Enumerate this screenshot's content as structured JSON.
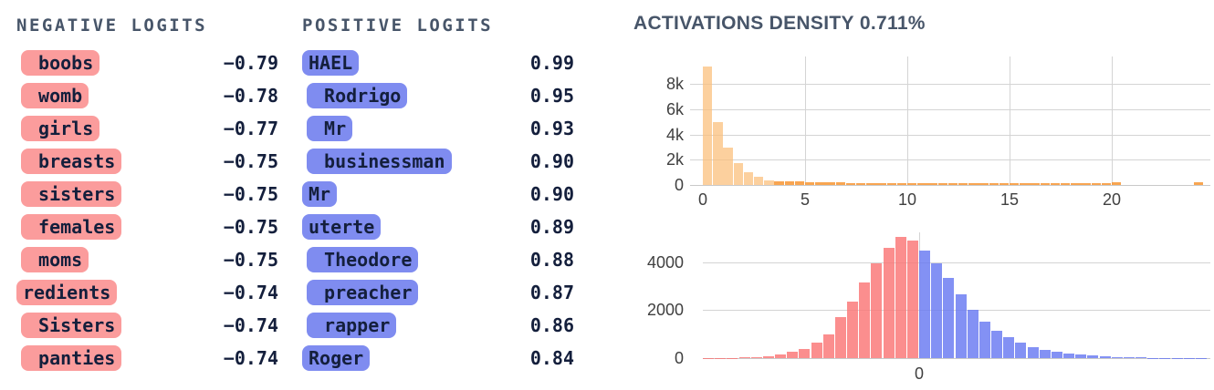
{
  "negative_logits": {
    "title": "NEGATIVE LOGITS",
    "items": [
      {
        "token": " boobs",
        "value": "−0.79"
      },
      {
        "token": " womb",
        "value": "−0.78"
      },
      {
        "token": " girls",
        "value": "−0.77"
      },
      {
        "token": " breasts",
        "value": "−0.75"
      },
      {
        "token": " sisters",
        "value": "−0.75"
      },
      {
        "token": " females",
        "value": "−0.75"
      },
      {
        "token": " moms",
        "value": "−0.75"
      },
      {
        "token": "redients",
        "value": "−0.74"
      },
      {
        "token": " Sisters",
        "value": "−0.74"
      },
      {
        "token": " panties",
        "value": "−0.74"
      }
    ]
  },
  "positive_logits": {
    "title": "POSITIVE LOGITS",
    "items": [
      {
        "token": "HAEL",
        "value": "0.99"
      },
      {
        "token": " Rodrigo",
        "value": "0.95"
      },
      {
        "token": " Mr",
        "value": "0.93"
      },
      {
        "token": " businessman",
        "value": "0.90"
      },
      {
        "token": "Mr",
        "value": "0.90"
      },
      {
        "token": "uterte",
        "value": "0.89"
      },
      {
        "token": " Theodore",
        "value": "0.88"
      },
      {
        "token": " preacher",
        "value": "0.87"
      },
      {
        "token": " rapper",
        "value": "0.86"
      },
      {
        "token": "Roger",
        "value": "0.84"
      }
    ]
  },
  "activations": {
    "title": "ACTIVATIONS DENSITY",
    "density": "0.711%"
  },
  "colors": {
    "negative_pill_bg": "#FB9C9C",
    "positive_pill_bg": "#7F8CF0",
    "token_text": "#141F3C",
    "header_text": "#475569",
    "gridline": "#D4D4D4",
    "axis_line": "#C9C9C9",
    "tick_text": "#404040",
    "activation_bar": "rgba(251,192,126,0.75)",
    "activation_bar_small": "rgba(247,149,51,0.85)",
    "logit_hist_negative": "rgba(250,114,114,0.8)",
    "logit_hist_positive": "rgba(100,118,241,0.8)"
  },
  "chart_data": [
    {
      "id": "activations-histogram",
      "type": "bar",
      "title": "ACTIVATIONS DENSITY 0.711%",
      "xlabel": "",
      "ylabel": "",
      "bin_start": 0,
      "bin_width": 0.5,
      "values": [
        9400,
        5000,
        2950,
        1750,
        1020,
        620,
        370,
        290,
        270,
        260,
        230,
        210,
        195,
        185,
        175,
        170,
        165,
        160,
        160,
        155,
        155,
        150,
        150,
        150,
        148,
        146,
        150,
        145,
        148,
        145,
        145,
        148,
        145,
        148,
        145,
        148,
        145,
        150,
        152,
        158,
        200,
        0,
        0,
        0,
        0,
        0,
        0,
        0,
        190
      ],
      "xticks": [
        0,
        5,
        10,
        15,
        20
      ],
      "yticks": [
        {
          "label": "0",
          "value": 0
        },
        {
          "label": "2k",
          "value": 2000
        },
        {
          "label": "4k",
          "value": 4000
        },
        {
          "label": "6k",
          "value": 6000
        },
        {
          "label": "8k",
          "value": 8000
        }
      ],
      "xlim": [
        -0.65,
        24.85
      ],
      "ylim": [
        0,
        10200
      ],
      "grid": true,
      "small_bar_threshold": 300
    },
    {
      "id": "logits-density-histogram",
      "type": "bar",
      "title": "",
      "xlabel": "",
      "ylabel": "",
      "series": [
        {
          "name": "negative",
          "values": [
            2,
            6,
            14,
            30,
            55,
            90,
            150,
            250,
            400,
            640,
            1000,
            1700,
            2350,
            3150,
            3950,
            4600,
            5050,
            4900
          ]
        },
        {
          "name": "positive",
          "values": [
            4500,
            3950,
            3350,
            2650,
            2000,
            1520,
            1150,
            870,
            640,
            470,
            350,
            260,
            195,
            145,
            108,
            80,
            58,
            42,
            30,
            20,
            13,
            8,
            5,
            3
          ]
        }
      ],
      "xticks_labels": [
        "0"
      ],
      "yticks": [
        {
          "label": "0",
          "value": 0
        },
        {
          "label": "2000",
          "value": 2000
        },
        {
          "label": "4000",
          "value": 4000
        }
      ],
      "ylim": [
        0,
        5250
      ],
      "grid": true
    }
  ]
}
